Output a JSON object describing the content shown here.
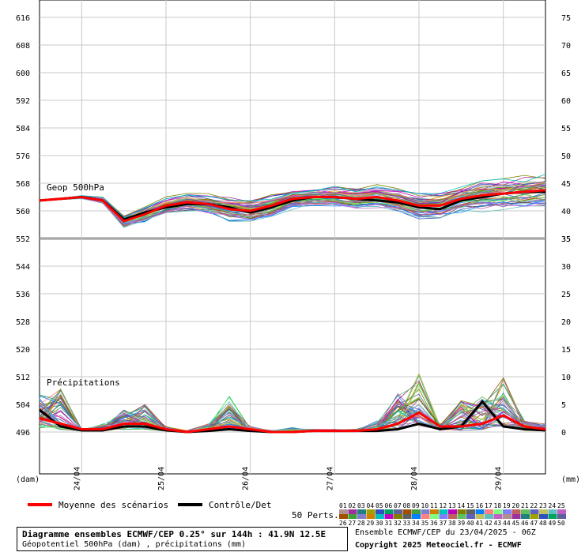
{
  "chart_data": {
    "type": "line",
    "panels": {
      "geopotential": {
        "label": "Geop 500hPa",
        "unit": "(dam)",
        "ylim": [
          552,
          620
        ],
        "ticks": [
          552,
          560,
          568,
          576,
          584,
          592,
          600,
          608,
          616
        ],
        "x_hours": [
          0,
          6,
          12,
          18,
          24,
          30,
          36,
          42,
          48,
          54,
          60,
          66,
          72,
          78,
          84,
          90,
          96,
          102,
          108,
          114,
          120,
          126,
          132,
          138,
          144
        ],
        "mean": [
          563,
          563.5,
          564,
          563,
          557,
          559,
          561.5,
          562.5,
          562,
          560.5,
          560,
          561.5,
          563.5,
          564,
          564,
          563.5,
          564,
          563,
          561.5,
          561.5,
          563.5,
          564.5,
          565,
          565.5,
          566
        ],
        "control": [
          563,
          563.5,
          564,
          563,
          557.5,
          559.5,
          561,
          562,
          562,
          561,
          559.5,
          561,
          563,
          564,
          564,
          563.5,
          563,
          562.5,
          561,
          560.5,
          563,
          564,
          565,
          565.5,
          565.5
        ],
        "spread": [
          0,
          0.2,
          0.4,
          0.8,
          1.5,
          2,
          2,
          2.2,
          2.6,
          3,
          3.2,
          2.8,
          2.6,
          2.4,
          2.6,
          2.8,
          3,
          3.2,
          3.4,
          3.6,
          3.8,
          4,
          4.2,
          4.4,
          4.6
        ]
      },
      "precipitation": {
        "label": "Précipitations",
        "unit": "(mm)",
        "ylim": [
          -5,
          35
        ],
        "ticks": [
          0,
          5,
          10,
          15,
          20,
          25,
          30,
          35
        ],
        "x_hours": [
          0,
          6,
          12,
          18,
          24,
          30,
          36,
          42,
          48,
          54,
          60,
          66,
          72,
          78,
          84,
          90,
          96,
          102,
          108,
          114,
          120,
          126,
          132,
          138,
          144
        ],
        "mean": [
          2.5,
          1.5,
          0.5,
          0.5,
          1.5,
          1.5,
          0.5,
          0,
          0.5,
          1,
          0.5,
          0,
          0,
          0.2,
          0.2,
          0.2,
          0.5,
          1.5,
          3.5,
          1,
          1,
          1.5,
          3,
          1,
          0.5
        ],
        "control": [
          4,
          1,
          0.3,
          0.3,
          1,
          1,
          0.3,
          0,
          0.2,
          0.5,
          0.2,
          0,
          0,
          0.2,
          0.2,
          0.2,
          0.2,
          0.5,
          1.5,
          0.5,
          1,
          5.5,
          1,
          0.5,
          0.3
        ],
        "max": [
          7,
          8,
          0.5,
          1.5,
          4,
          5,
          1,
          0.3,
          1.5,
          6.5,
          1,
          0.3,
          0.8,
          0.5,
          0.5,
          0.5,
          2,
          7,
          11,
          1.5,
          6,
          6.5,
          10,
          2,
          1.5
        ]
      }
    },
    "x_axis": {
      "labels": [
        {
          "label": "24/04",
          "hour": 12
        },
        {
          "label": "25/04",
          "hour": 36
        },
        {
          "label": "26/04",
          "hour": 60
        },
        {
          "label": "27/04",
          "hour": 84
        },
        {
          "label": "28/04",
          "hour": 108
        },
        {
          "label": "29/04",
          "hour": 132
        }
      ],
      "max_hour": 144
    },
    "left_axis_ticks": [
      496,
      504,
      512,
      520,
      528,
      536,
      544,
      552,
      560,
      568,
      576,
      584,
      592,
      600,
      608,
      616
    ],
    "members": 50,
    "grid": true
  },
  "legend": {
    "mean_label": "Moyenne des scénarios",
    "control_label": "Contrôle/Det",
    "perts_label": "50 Perts.",
    "mean_color": "#ff0000",
    "control_color": "#000000",
    "member_colors": [
      "#b09090",
      "#a030a0",
      "#208080",
      "#a0a000",
      "#3050c0",
      "#00a060",
      "#6060a0",
      "#a05000",
      "#40a040",
      "#8080d0",
      "#d08000",
      "#00c0c0",
      "#c000c0",
      "#808000",
      "#606060",
      "#0080ff",
      "#ff8080",
      "#80ff80",
      "#8080ff",
      "#c06060",
      "#60c060",
      "#6060c0",
      "#c0c060",
      "#60c0c0",
      "#c060c0"
    ],
    "numbers_top": [
      "01",
      "02",
      "03",
      "04",
      "05",
      "06",
      "07",
      "08",
      "09",
      "10",
      "11",
      "12",
      "13",
      "14",
      "15",
      "16",
      "17",
      "18",
      "19",
      "20",
      "21",
      "22",
      "23",
      "24",
      "25"
    ],
    "numbers_bottom": [
      "26",
      "27",
      "28",
      "29",
      "30",
      "31",
      "32",
      "33",
      "34",
      "35",
      "36",
      "37",
      "38",
      "39",
      "40",
      "41",
      "42",
      "43",
      "44",
      "45",
      "46",
      "47",
      "48",
      "49",
      "50"
    ]
  },
  "footer": {
    "title": "Diagramme ensembles ECMWF/CEP 0.25° sur 144h : 41.9N 12.5E",
    "subtitle": "Géopotentiel 500hPa (dam) , précipitations (mm)",
    "run_info": "Ensemble ECMWF/CEP du 23/04/2025 - 06Z",
    "copyright": "Copyright 2025 Meteociel.fr - ECMWF"
  }
}
